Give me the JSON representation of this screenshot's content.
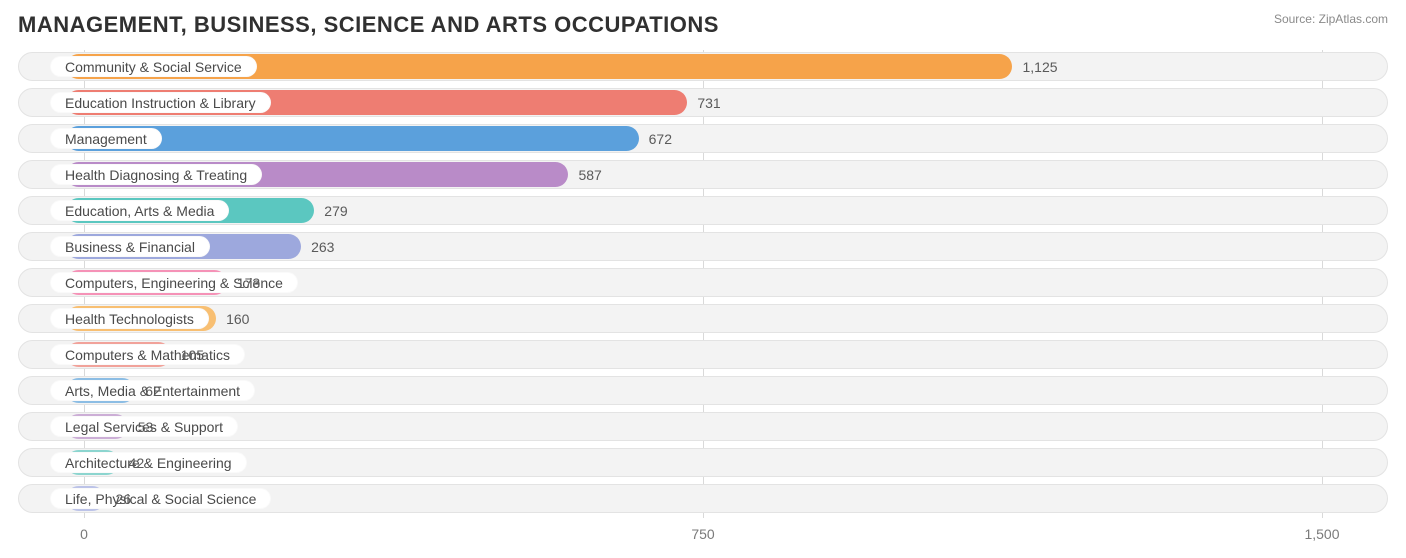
{
  "header": {
    "title": "MANAGEMENT, BUSINESS, SCIENCE AND ARTS OCCUPATIONS",
    "source_label": "Source:",
    "source_site": "ZipAtlas.com"
  },
  "chart": {
    "type": "bar-horizontal",
    "background_color": "#ffffff",
    "track_bg": "#f3f3f3",
    "track_border": "#e3e3e3",
    "grid_color": "#d9d9d9",
    "label_pill_bg": "#ffffff",
    "label_fontsize": 14,
    "title_fontsize": 22,
    "value_fontsize": 14,
    "value_color": "#5a5a5a",
    "label_color": "#4a4a4a",
    "tick_color": "#7a7a7a",
    "x_axis": {
      "min": -80,
      "max": 1580,
      "ticks": [
        0,
        750,
        1500
      ]
    },
    "bar_left_inset": 18,
    "label_left_offset": 32,
    "rows": [
      {
        "label": "Community & Social Service",
        "value": 1125,
        "color": "#f6a34a"
      },
      {
        "label": "Education Instruction & Library",
        "value": 731,
        "color": "#ee7d72"
      },
      {
        "label": "Management",
        "value": 672,
        "color": "#5ba0dc"
      },
      {
        "label": "Health Diagnosing & Treating",
        "value": 587,
        "color": "#b98bc8"
      },
      {
        "label": "Education, Arts & Media",
        "value": 279,
        "color": "#5bc7c0"
      },
      {
        "label": "Business & Financial",
        "value": 263,
        "color": "#9da8dd"
      },
      {
        "label": "Computers, Engineering & Science",
        "value": 173,
        "color": "#f592b7"
      },
      {
        "label": "Health Technologists",
        "value": 160,
        "color": "#f8bf72"
      },
      {
        "label": "Computers & Mathematics",
        "value": 105,
        "color": "#f1a29a"
      },
      {
        "label": "Arts, Media & Entertainment",
        "value": 62,
        "color": "#8cbde4"
      },
      {
        "label": "Legal Services & Support",
        "value": 53,
        "color": "#ccaed6"
      },
      {
        "label": "Architecture & Engineering",
        "value": 42,
        "color": "#8cd5cf"
      },
      {
        "label": "Life, Physical & Social Science",
        "value": 26,
        "color": "#bcc3e8"
      }
    ]
  }
}
